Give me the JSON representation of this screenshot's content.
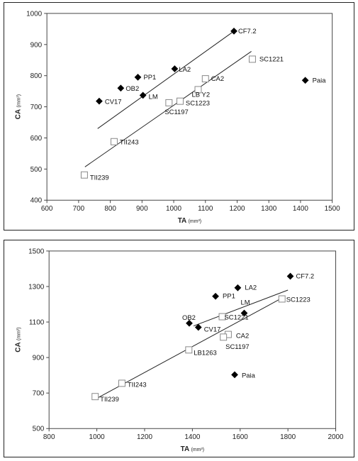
{
  "chart_data": [
    {
      "type": "scatter",
      "xlabel": "TA",
      "xunit": "(mm³)",
      "ylabel": "CA",
      "yunit": "(mm³)",
      "xlim": [
        600,
        1500
      ],
      "ylim": [
        400,
        1000
      ],
      "xticks": [
        600,
        700,
        800,
        900,
        1000,
        1100,
        1200,
        1300,
        1400,
        1500
      ],
      "yticks": [
        400,
        500,
        600,
        700,
        800,
        900,
        1000
      ],
      "grid": false,
      "series": [
        {
          "marker": "filled-diamond",
          "color": "#000000",
          "points": [
            {
              "label": "CF7.2",
              "x": 1190,
              "y": 943
            },
            {
              "label": "LA2",
              "x": 1003,
              "y": 822
            },
            {
              "label": "PP1",
              "x": 887,
              "y": 795
            },
            {
              "label": "OB2",
              "x": 833,
              "y": 760
            },
            {
              "label": "LM",
              "x": 903,
              "y": 737
            },
            {
              "label": "CV17",
              "x": 765,
              "y": 718
            },
            {
              "label": "Paia",
              "x": 1415,
              "y": 785
            }
          ],
          "trendline": [
            [
              760,
              630
            ],
            [
              1190,
              943
            ]
          ]
        },
        {
          "marker": "open-square",
          "color": "#888888",
          "points": [
            {
              "label": "SC1221",
              "x": 1248,
              "y": 853
            },
            {
              "label": "CA2",
              "x": 1100,
              "y": 790
            },
            {
              "label": "LB Y2",
              "x": 1077,
              "y": 755
            },
            {
              "label": "SC1223",
              "x": 1020,
              "y": 718
            },
            {
              "label": "SC1197",
              "x": 985,
              "y": 713
            },
            {
              "label": "TII243",
              "x": 812,
              "y": 588
            },
            {
              "label": "TII239",
              "x": 718,
              "y": 481
            }
          ],
          "trendline": [
            [
              720,
              507
            ],
            [
              1245,
              878
            ]
          ]
        }
      ]
    },
    {
      "type": "scatter",
      "xlabel": "TA",
      "xunit": "(mm³)",
      "ylabel": "CA",
      "yunit": "(mm³)",
      "xlim": [
        800,
        2000
      ],
      "ylim": [
        500,
        1500
      ],
      "xticks": [
        800,
        1000,
        1200,
        1400,
        1600,
        1800,
        2000
      ],
      "yticks": [
        500,
        700,
        900,
        1100,
        1300,
        1500
      ],
      "grid": false,
      "series": [
        {
          "marker": "filled-diamond",
          "color": "#000000",
          "points": [
            {
              "label": "CF7.2",
              "x": 1810,
              "y": 1358
            },
            {
              "label": "LA2",
              "x": 1590,
              "y": 1293
            },
            {
              "label": "PP1",
              "x": 1497,
              "y": 1245
            },
            {
              "label": "OB2",
              "x": 1387,
              "y": 1093
            },
            {
              "label": "CV17",
              "x": 1425,
              "y": 1070
            },
            {
              "label": "LM",
              "x": 1617,
              "y": 1150
            },
            {
              "label": "Paia",
              "x": 1577,
              "y": 803
            }
          ],
          "trendline": [
            [
              1405,
              1078
            ],
            [
              1800,
              1280
            ]
          ]
        },
        {
          "marker": "open-square",
          "color": "#888888",
          "points": [
            {
              "label": "SC1223",
              "x": 1775,
              "y": 1230
            },
            {
              "label": "SC1221",
              "x": 1525,
              "y": 1130
            },
            {
              "label": "CA2",
              "x": 1550,
              "y": 1030
            },
            {
              "label": "SC1197",
              "x": 1530,
              "y": 1015
            },
            {
              "label": "LB1263",
              "x": 1385,
              "y": 943
            },
            {
              "label": "TII243",
              "x": 1105,
              "y": 755
            },
            {
              "label": "TII239",
              "x": 993,
              "y": 680
            }
          ],
          "trendline": [
            [
              993,
              665
            ],
            [
              1775,
              1235
            ]
          ]
        }
      ]
    }
  ]
}
